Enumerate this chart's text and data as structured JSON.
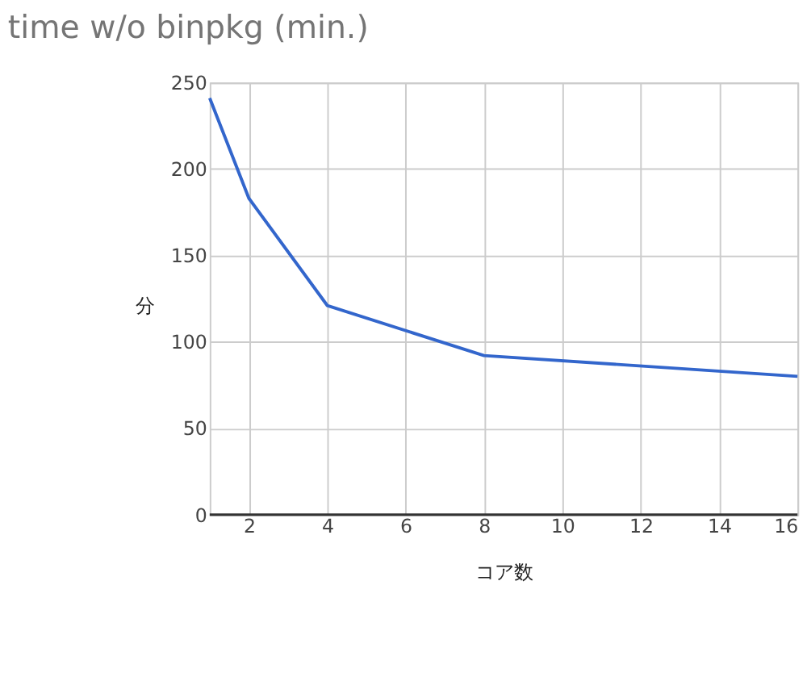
{
  "chart_data": {
    "type": "line",
    "title": "time w/o binpkg (min.)",
    "xlabel": "コア数",
    "ylabel": "分",
    "x": [
      1,
      2,
      4,
      8,
      16
    ],
    "series": [
      {
        "color": "#3366cc",
        "values": [
          241,
          183,
          121,
          92,
          80
        ]
      }
    ],
    "xlim": [
      1,
      16
    ],
    "xticks": [
      2,
      4,
      6,
      8,
      10,
      12,
      14,
      16
    ],
    "ylim": [
      0,
      250
    ],
    "yticks": [
      0,
      50,
      100,
      150,
      200,
      250
    ],
    "grid": true,
    "marker": "none",
    "line_style": "solid"
  }
}
